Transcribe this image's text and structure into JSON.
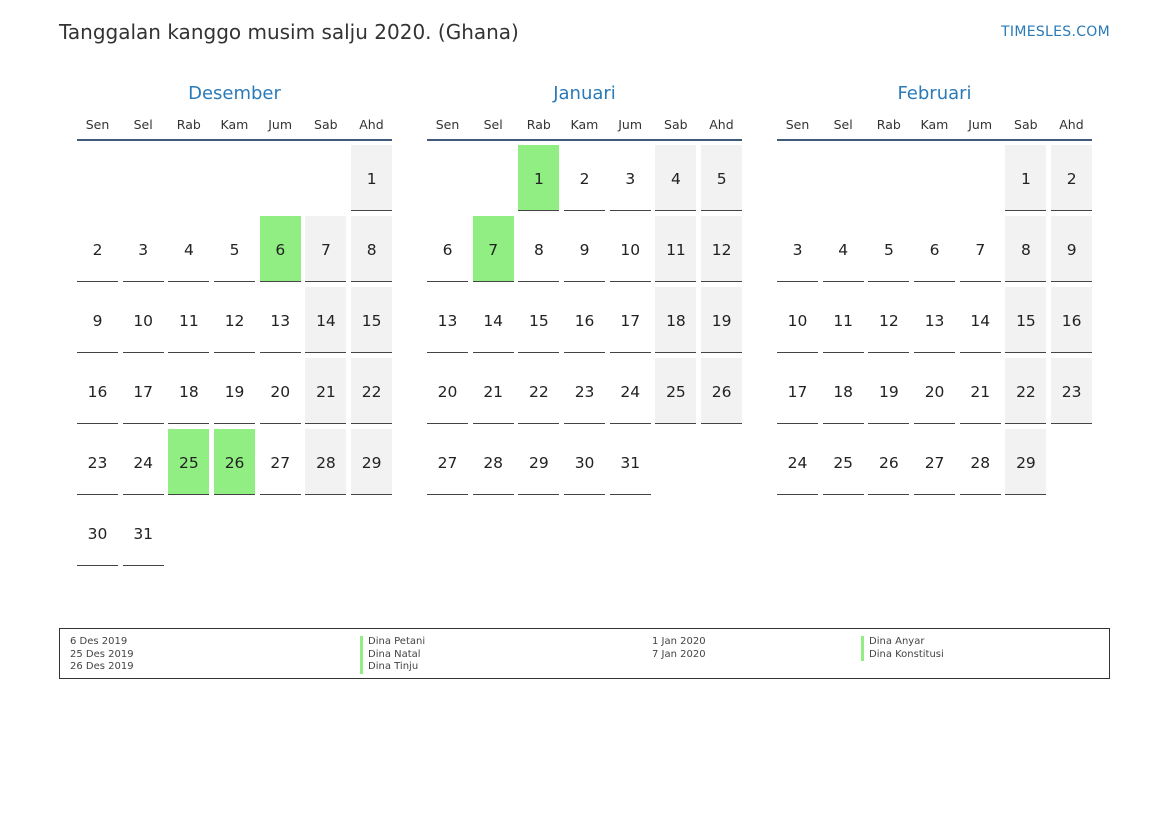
{
  "header": {
    "title": "Tanggalan kanggo musim salju 2020. (Ghana)",
    "brand": "TIMESLES.COM"
  },
  "weekdays": [
    "Sen",
    "Sel",
    "Rab",
    "Kam",
    "Jum",
    "Sab",
    "Ahd"
  ],
  "colors": {
    "accent": "#2a7ab8",
    "holiday": "#90ee82",
    "weekend": "#f2f2f2"
  },
  "months": [
    {
      "name": "Desember",
      "start_weekday": 6,
      "days": 31,
      "holidays": [
        6,
        25,
        26
      ]
    },
    {
      "name": "Januari",
      "start_weekday": 2,
      "days": 31,
      "holidays": [
        1,
        7
      ]
    },
    {
      "name": "Februari",
      "start_weekday": 5,
      "days": 29,
      "holidays": []
    }
  ],
  "legend": {
    "left": {
      "dates": [
        "6 Des 2019",
        "25 Des 2019",
        "26 Des 2019"
      ],
      "names": [
        "Dina Petani",
        "Dina Natal",
        "Dina Tinju"
      ]
    },
    "right": {
      "dates": [
        "1 Jan 2020",
        "7 Jan 2020"
      ],
      "names": [
        "Dina Anyar",
        "Dina Konstitusi"
      ]
    }
  }
}
